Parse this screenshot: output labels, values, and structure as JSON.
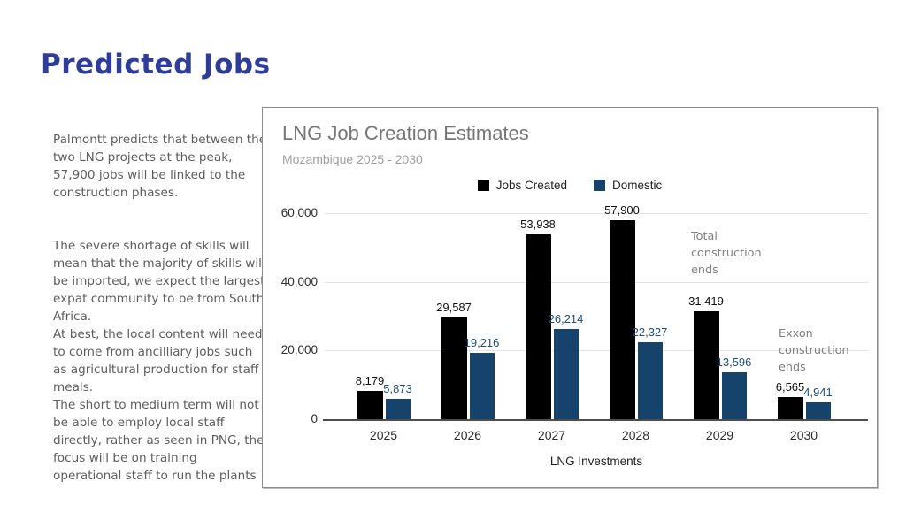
{
  "slide": {
    "title": "Predicted Jobs",
    "left_text": {
      "paragraph1": "Palmontt predicts that between the two LNG projects at the peak, 57,900 jobs will be linked to the construction phases.",
      "paragraph2_lines": [
        "The severe shortage of skills will mean that the majority of skills will be imported, we expect the largest expat community to be from South Africa.",
        "At best, the local content will need to come from ancilliary jobs such as agricultural production for staff meals.",
        "The short to medium term will not be able to employ local staff directly, rather as seen in PNG, the focus will be on training operational staff to run the plants"
      ]
    }
  },
  "colors": {
    "title_blue": "#2e3d9a",
    "body_gray": "#5d5d5d",
    "chart_title_gray": "#757575",
    "chart_subtitle_gray": "#9e9e9e",
    "bar_black": "#000000",
    "bar_navy": "#16436b",
    "label_black": "#111111",
    "label_navy": "#1d4e79",
    "annotation_gray": "#7f7f7f"
  },
  "chart_data": {
    "type": "bar",
    "title": "LNG Job Creation Estimates",
    "subtitle": "Mozambique 2025 - 2030",
    "xlabel": "LNG Investments",
    "ylabel": "",
    "ylim": [
      0,
      60000
    ],
    "yticks": [
      0,
      20000,
      40000,
      60000
    ],
    "grid": true,
    "legend_position": "top-center",
    "categories": [
      "2025",
      "2026",
      "2027",
      "2028",
      "2029",
      "2030"
    ],
    "series": [
      {
        "name": "Jobs Created",
        "color": "#000000",
        "label_color": "#111111",
        "values": [
          8179,
          29587,
          53938,
          57900,
          31419,
          6565
        ]
      },
      {
        "name": "Domestic",
        "color": "#16436b",
        "label_color": "#1d4e79",
        "values": [
          5873,
          19216,
          26214,
          22327,
          13596,
          4941
        ]
      }
    ],
    "annotations": [
      {
        "text": "Total construction ends"
      },
      {
        "text": "Exxon construction ends"
      }
    ]
  }
}
